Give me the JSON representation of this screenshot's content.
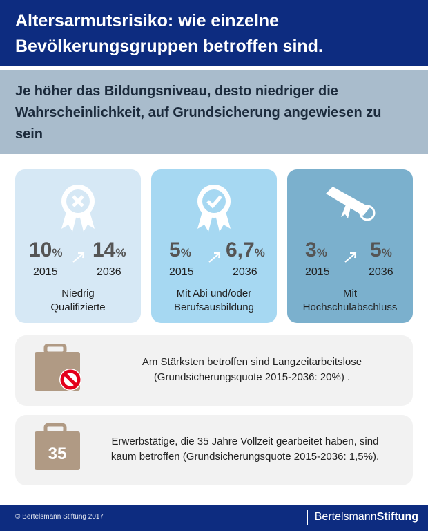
{
  "header": {
    "title_line1": "Altersarmutsrisiko: wie einzelne",
    "title_line2": "Bevölkerungsgruppen betroffen sind."
  },
  "subtitle": "Je höher das Bildungsniveau, desto niedriger die Wahrscheinlichkeit, auf Grundsicherung angewiesen zu sein",
  "cards": [
    {
      "icon": "ribbon-x-icon",
      "v2015": "10",
      "v2036": "14",
      "unit": "%",
      "y1": "2015",
      "y2": "2036",
      "label1": "Niedrig",
      "label2": "Qualifizierte",
      "color": "#d6e8f5"
    },
    {
      "icon": "ribbon-check-icon",
      "v2015": "5",
      "v2036": "6,7",
      "unit": "%",
      "y1": "2015",
      "y2": "2036",
      "label1": "Mit Abi und/oder",
      "label2": "Berufsausbildung",
      "color": "#a6d8f2"
    },
    {
      "icon": "diploma-scroll-icon",
      "v2015": "3",
      "v2036": "5",
      "unit": "%",
      "y1": "2015",
      "y2": "2036",
      "label1": "Mit",
      "label2": "Hochschulabschluss",
      "color": "#7bb0cd"
    }
  ],
  "boxes": [
    {
      "icon": "briefcase-prohibited-icon",
      "line1": "Am Stärksten betroffen sind Langzeitarbeitslose",
      "line2": "(Grundsicherungsquote 2015-2036: 20%) ."
    },
    {
      "icon": "briefcase-35-icon",
      "badge": "35",
      "line1": "Erwerbstätige, die 35 Jahre Vollzeit gearbeitet haben, sind",
      "line2": "kaum betroffen (Grundsicherungsquote 2015-2036: 1,5%)."
    }
  ],
  "footer": {
    "copyright": "© Bertelsmann Stiftung 2017",
    "brand_a": "Bertelsmann",
    "brand_b": "Stiftung"
  },
  "colors": {
    "header": "#0d2c80",
    "subtitle_band": "#a9bccc",
    "briefcase": "#b09a84",
    "prohibited": "#e3001b"
  }
}
